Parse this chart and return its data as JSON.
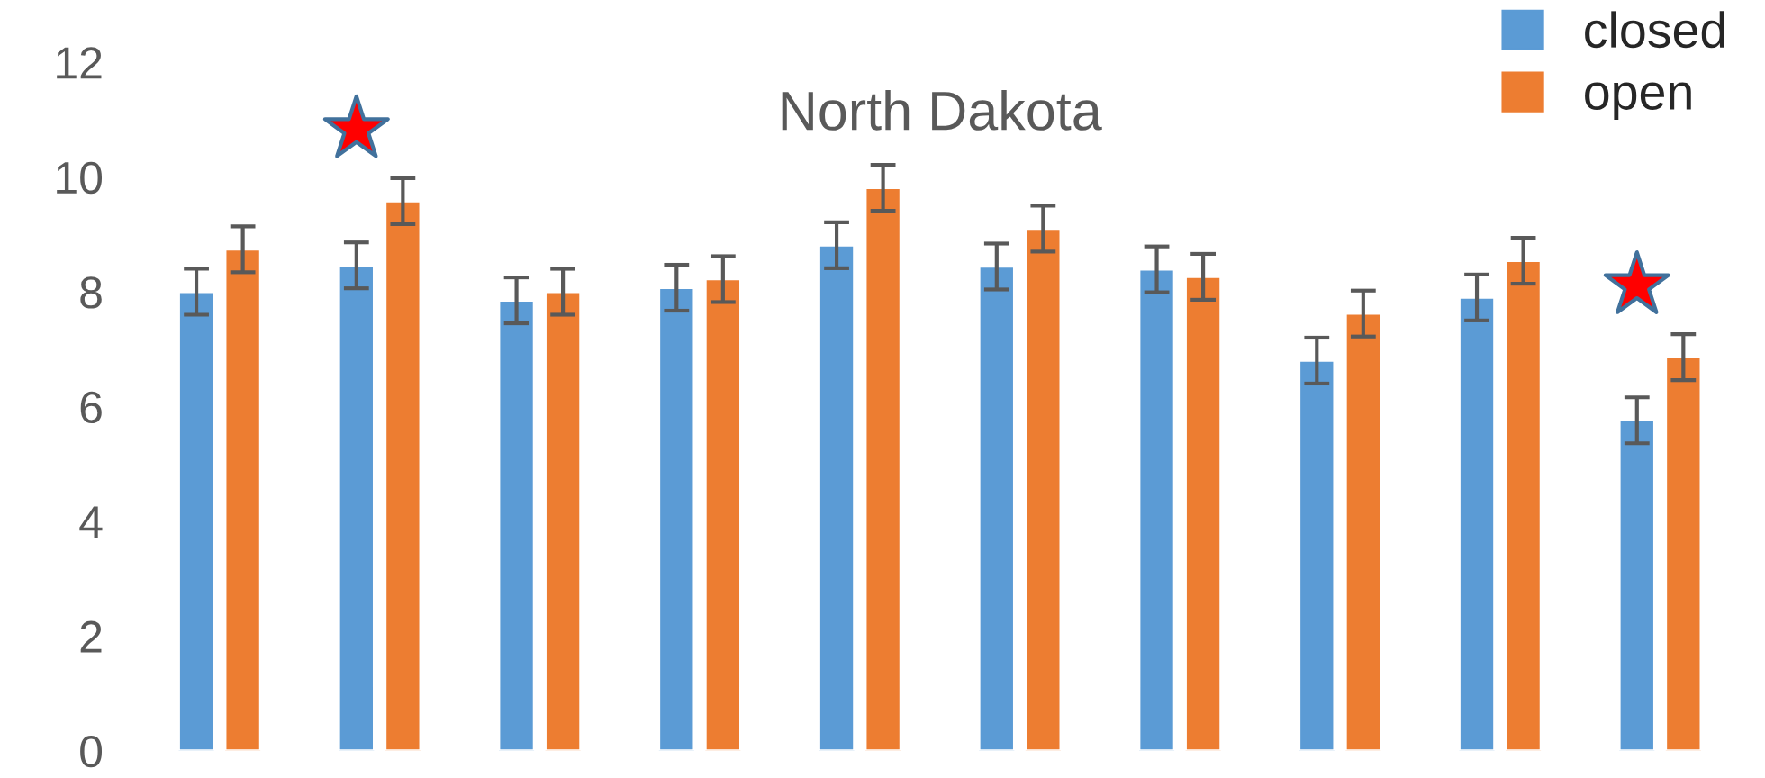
{
  "chart_data": {
    "type": "bar",
    "title": "North Dakota",
    "categories": [
      null,
      null,
      null,
      null,
      null,
      null,
      null,
      null,
      null,
      null
    ],
    "series": [
      {
        "name": "closed",
        "color": "#5b9bd5",
        "values": [
          8.0,
          8.46,
          7.85,
          8.07,
          8.81,
          8.44,
          8.39,
          6.8,
          7.9,
          5.76
        ],
        "errors": [
          0.4,
          0.4,
          0.4,
          0.4,
          0.4,
          0.4,
          0.4,
          0.4,
          0.4,
          0.4
        ]
      },
      {
        "name": "open",
        "color": "#ed7d31",
        "values": [
          8.74,
          9.58,
          8.0,
          8.22,
          9.81,
          9.1,
          8.26,
          7.62,
          8.54,
          6.86
        ],
        "errors": [
          0.4,
          0.4,
          0.4,
          0.4,
          0.4,
          0.4,
          0.4,
          0.4,
          0.4,
          0.4
        ]
      }
    ],
    "ylim": [
      0,
      12
    ],
    "yticks": [
      0,
      2,
      4,
      6,
      8,
      10,
      12
    ],
    "grid": false,
    "legend": "top right"
  }
}
